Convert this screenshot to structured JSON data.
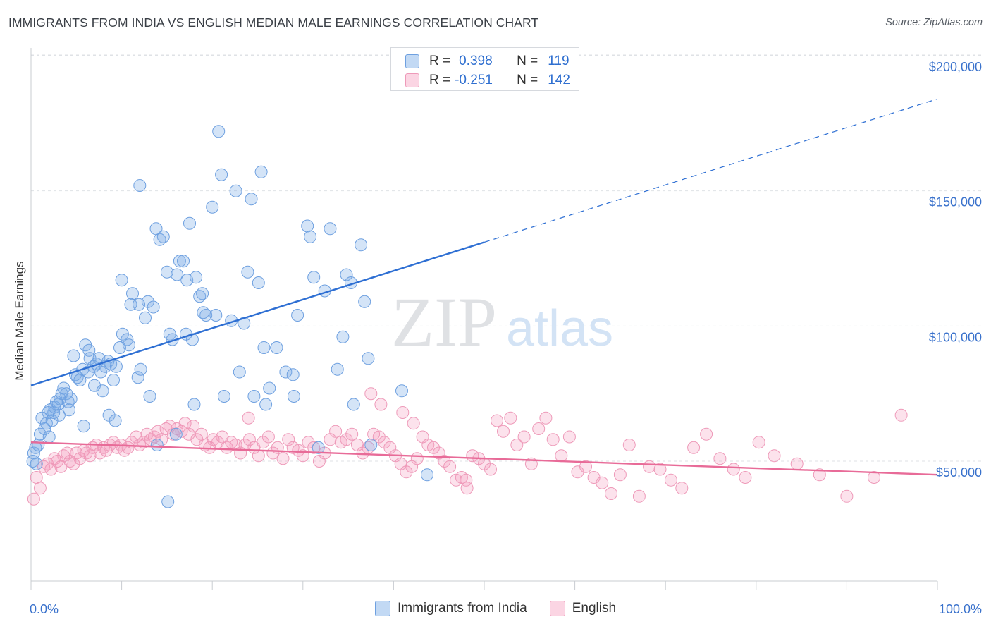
{
  "header": {
    "title": "IMMIGRANTS FROM INDIA VS ENGLISH MEDIAN MALE EARNINGS CORRELATION CHART",
    "source": "Source: ZipAtlas.com"
  },
  "watermark": {
    "zip": "ZIP",
    "atlas": "atlas"
  },
  "stats_legend": {
    "rows": [
      {
        "r_label": "R =",
        "r_value": "0.398",
        "n_label": "N =",
        "n_value": "119"
      },
      {
        "r_label": "R =",
        "r_value": "-0.251",
        "n_label": "N =",
        "n_value": "142"
      }
    ]
  },
  "bottom_legend": {
    "series_1": "Immigrants from India",
    "series_2": "English"
  },
  "colors": {
    "india_fill": "rgba(120,170,230,0.32)",
    "india_stroke": "#6ea0e0",
    "india_line": "#2e6fd3",
    "english_fill": "rgba(245,150,185,0.28)",
    "english_stroke": "#ee9ab9",
    "english_line": "#e86b98",
    "axis_label_blue": "#3a72cc",
    "grid": "#dfe2e6"
  },
  "chart_data": {
    "type": "scatter",
    "title": "IMMIGRANTS FROM INDIA VS ENGLISH MEDIAN MALE EARNINGS CORRELATION CHART",
    "xlabel": "",
    "ylabel": "Median Male Earnings",
    "x_tick_labels": [
      "0.0%",
      "100.0%"
    ],
    "y_tick_labels": [
      "$50,000",
      "$100,000",
      "$150,000",
      "$200,000"
    ],
    "xlim": [
      0,
      100
    ],
    "ylim": [
      15000,
      220000
    ],
    "y_ticks": [
      50000,
      100000,
      150000,
      200000
    ],
    "grid": true,
    "legend_position": "top-center",
    "series": [
      {
        "name": "Immigrants from India",
        "R": 0.398,
        "N": 119,
        "trend": {
          "x0": 0,
          "y0": 78000,
          "x1": 50,
          "y1": 131000,
          "dashed_to_x": 100,
          "dashed_to_y": 184000
        },
        "points": [
          [
            0.2,
            50000
          ],
          [
            0.3,
            53000
          ],
          [
            0.5,
            55000
          ],
          [
            0.6,
            49000
          ],
          [
            0.8,
            56000
          ],
          [
            1.2,
            66000
          ],
          [
            1.5,
            62000
          ],
          [
            1.7,
            64000
          ],
          [
            1.9,
            68000
          ],
          [
            2.1,
            69000
          ],
          [
            2.3,
            65000
          ],
          [
            2.5,
            68000
          ],
          [
            2.6,
            70000
          ],
          [
            2.8,
            72000
          ],
          [
            3.0,
            71000
          ],
          [
            3.2,
            73000
          ],
          [
            3.4,
            75000
          ],
          [
            3.6,
            77000
          ],
          [
            3.9,
            75000
          ],
          [
            4.1,
            72000
          ],
          [
            4.4,
            73000
          ],
          [
            4.7,
            89000
          ],
          [
            4.9,
            82000
          ],
          [
            5.1,
            81000
          ],
          [
            5.4,
            80000
          ],
          [
            5.7,
            84000
          ],
          [
            6.0,
            93000
          ],
          [
            6.3,
            83000
          ],
          [
            6.5,
            88000
          ],
          [
            6.9,
            85000
          ],
          [
            7.2,
            86000
          ],
          [
            7.5,
            88000
          ],
          [
            7.7,
            83000
          ],
          [
            7.9,
            76000
          ],
          [
            8.2,
            85000
          ],
          [
            8.5,
            87000
          ],
          [
            8.8,
            86000
          ],
          [
            9.1,
            80000
          ],
          [
            9.4,
            85000
          ],
          [
            9.8,
            92000
          ],
          [
            10.1,
            97000
          ],
          [
            10.6,
            95000
          ],
          [
            11.2,
            112000
          ],
          [
            11.0,
            108000
          ],
          [
            11.8,
            81000
          ],
          [
            12.1,
            84000
          ],
          [
            12.6,
            103000
          ],
          [
            12.9,
            109000
          ],
          [
            13.5,
            107000
          ],
          [
            13.8,
            136000
          ],
          [
            14.2,
            132000
          ],
          [
            14.6,
            133000
          ],
          [
            15.0,
            120000
          ],
          [
            15.3,
            97000
          ],
          [
            15.6,
            95000
          ],
          [
            16.1,
            119000
          ],
          [
            16.4,
            124000
          ],
          [
            16.8,
            124000
          ],
          [
            17.2,
            117000
          ],
          [
            17.5,
            138000
          ],
          [
            17.8,
            95000
          ],
          [
            18.2,
            118000
          ],
          [
            18.6,
            111000
          ],
          [
            18.9,
            112000
          ],
          [
            19.3,
            104000
          ],
          [
            20.0,
            144000
          ],
          [
            20.4,
            104000
          ],
          [
            20.7,
            172000
          ],
          [
            21.3,
            74000
          ],
          [
            22.1,
            102000
          ],
          [
            22.6,
            150000
          ],
          [
            23.0,
            83000
          ],
          [
            23.5,
            101000
          ],
          [
            24.3,
            147000
          ],
          [
            24.6,
            74000
          ],
          [
            25.1,
            116000
          ],
          [
            25.4,
            157000
          ],
          [
            25.7,
            92000
          ],
          [
            25.9,
            71000
          ],
          [
            27.1,
            92000
          ],
          [
            28.1,
            83000
          ],
          [
            28.9,
            82000
          ],
          [
            29.4,
            104000
          ],
          [
            30.5,
            137000
          ],
          [
            30.8,
            133000
          ],
          [
            31.2,
            118000
          ],
          [
            31.7,
            55000
          ],
          [
            32.4,
            113000
          ],
          [
            33.0,
            136000
          ],
          [
            33.8,
            84000
          ],
          [
            34.4,
            96000
          ],
          [
            34.8,
            119000
          ],
          [
            35.3,
            116000
          ],
          [
            35.6,
            71000
          ],
          [
            36.4,
            130000
          ],
          [
            36.8,
            109000
          ],
          [
            37.2,
            88000
          ],
          [
            37.5,
            56000
          ],
          [
            40.9,
            76000
          ],
          [
            43.7,
            45000
          ],
          [
            13.9,
            56000
          ],
          [
            8.6,
            67000
          ],
          [
            9.3,
            65000
          ],
          [
            15.1,
            35000
          ],
          [
            16.0,
            60000
          ],
          [
            10.0,
            117000
          ],
          [
            10.8,
            93000
          ],
          [
            11.9,
            108000
          ],
          [
            13.1,
            74000
          ],
          [
            17.1,
            97000
          ],
          [
            19.0,
            105000
          ],
          [
            21.0,
            156000
          ],
          [
            23.9,
            120000
          ],
          [
            12.0,
            152000
          ],
          [
            7.0,
            78000
          ],
          [
            5.8,
            63000
          ],
          [
            6.4,
            91000
          ],
          [
            4.2,
            69000
          ],
          [
            3.1,
            67000
          ],
          [
            1.0,
            60000
          ],
          [
            2.0,
            59000
          ],
          [
            18.0,
            71000
          ],
          [
            26.3,
            77000
          ],
          [
            29.0,
            74000
          ]
        ]
      },
      {
        "name": "English",
        "R": -0.251,
        "N": 142,
        "trend": {
          "x0": 0,
          "y0": 57000,
          "x1": 100,
          "y1": 45000
        },
        "points": [
          [
            0.3,
            36000
          ],
          [
            0.6,
            44000
          ],
          [
            1.0,
            40000
          ],
          [
            1.4,
            48000
          ],
          [
            1.8,
            49000
          ],
          [
            2.2,
            47000
          ],
          [
            2.6,
            51000
          ],
          [
            2.9,
            50000
          ],
          [
            3.3,
            48000
          ],
          [
            3.6,
            52000
          ],
          [
            4.0,
            53000
          ],
          [
            4.3,
            50000
          ],
          [
            4.7,
            49000
          ],
          [
            5.0,
            53000
          ],
          [
            5.4,
            51000
          ],
          [
            5.8,
            54000
          ],
          [
            6.1,
            53000
          ],
          [
            6.5,
            52000
          ],
          [
            6.8,
            55000
          ],
          [
            7.2,
            56000
          ],
          [
            7.6,
            53000
          ],
          [
            8.0,
            55000
          ],
          [
            8.3,
            54000
          ],
          [
            8.7,
            56000
          ],
          [
            9.1,
            57000
          ],
          [
            9.5,
            55000
          ],
          [
            9.9,
            56000
          ],
          [
            10.3,
            54000
          ],
          [
            10.7,
            55000
          ],
          [
            11.1,
            57000
          ],
          [
            11.6,
            59000
          ],
          [
            12.0,
            56000
          ],
          [
            12.4,
            57000
          ],
          [
            12.8,
            60000
          ],
          [
            13.2,
            58000
          ],
          [
            13.6,
            59000
          ],
          [
            14.0,
            61000
          ],
          [
            14.4,
            58000
          ],
          [
            14.9,
            62000
          ],
          [
            15.3,
            63000
          ],
          [
            15.7,
            60000
          ],
          [
            16.1,
            62000
          ],
          [
            16.6,
            61000
          ],
          [
            17.0,
            64000
          ],
          [
            17.4,
            60000
          ],
          [
            17.9,
            63000
          ],
          [
            18.3,
            58000
          ],
          [
            18.8,
            60000
          ],
          [
            19.2,
            56000
          ],
          [
            19.7,
            55000
          ],
          [
            20.1,
            58000
          ],
          [
            20.6,
            57000
          ],
          [
            21.1,
            59000
          ],
          [
            21.6,
            55000
          ],
          [
            22.1,
            57000
          ],
          [
            22.6,
            56000
          ],
          [
            23.1,
            53000
          ],
          [
            23.6,
            56000
          ],
          [
            24.1,
            58000
          ],
          [
            24.6,
            55000
          ],
          [
            25.1,
            52000
          ],
          [
            25.6,
            57000
          ],
          [
            26.2,
            59000
          ],
          [
            26.7,
            53000
          ],
          [
            27.2,
            55000
          ],
          [
            27.8,
            51000
          ],
          [
            28.4,
            58000
          ],
          [
            28.9,
            55000
          ],
          [
            29.5,
            54000
          ],
          [
            30.0,
            52000
          ],
          [
            30.6,
            57000
          ],
          [
            31.2,
            55000
          ],
          [
            31.8,
            50000
          ],
          [
            32.4,
            53000
          ],
          [
            33.0,
            58000
          ],
          [
            33.6,
            61000
          ],
          [
            34.2,
            57000
          ],
          [
            34.8,
            58000
          ],
          [
            35.4,
            60000
          ],
          [
            36.0,
            56000
          ],
          [
            36.6,
            53000
          ],
          [
            37.2,
            55000
          ],
          [
            37.8,
            60000
          ],
          [
            38.4,
            59000
          ],
          [
            39.0,
            57000
          ],
          [
            39.6,
            55000
          ],
          [
            40.2,
            52000
          ],
          [
            40.8,
            49000
          ],
          [
            41.4,
            46000
          ],
          [
            42.0,
            48000
          ],
          [
            42.6,
            51000
          ],
          [
            43.2,
            59000
          ],
          [
            43.8,
            56000
          ],
          [
            44.4,
            55000
          ],
          [
            45.0,
            53000
          ],
          [
            45.6,
            50000
          ],
          [
            46.2,
            48000
          ],
          [
            46.9,
            43000
          ],
          [
            47.5,
            44000
          ],
          [
            48.1,
            40000
          ],
          [
            48.7,
            52000
          ],
          [
            49.4,
            51000
          ],
          [
            50.0,
            49000
          ],
          [
            50.7,
            47000
          ],
          [
            51.4,
            65000
          ],
          [
            52.1,
            61000
          ],
          [
            52.9,
            66000
          ],
          [
            53.6,
            56000
          ],
          [
            54.4,
            59000
          ],
          [
            55.2,
            49000
          ],
          [
            56.0,
            62000
          ],
          [
            56.8,
            66000
          ],
          [
            57.6,
            58000
          ],
          [
            58.5,
            52000
          ],
          [
            59.4,
            59000
          ],
          [
            60.3,
            46000
          ],
          [
            61.2,
            48000
          ],
          [
            62.1,
            44000
          ],
          [
            63.0,
            42000
          ],
          [
            64.0,
            38000
          ],
          [
            65.0,
            45000
          ],
          [
            66.0,
            56000
          ],
          [
            67.1,
            37000
          ],
          [
            68.2,
            48000
          ],
          [
            69.4,
            47000
          ],
          [
            70.6,
            43000
          ],
          [
            71.8,
            40000
          ],
          [
            73.1,
            55000
          ],
          [
            74.5,
            60000
          ],
          [
            76.0,
            51000
          ],
          [
            77.5,
            47000
          ],
          [
            78.8,
            44000
          ],
          [
            80.3,
            57000
          ],
          [
            82.0,
            52000
          ],
          [
            84.5,
            49000
          ],
          [
            87.0,
            45000
          ],
          [
            90.0,
            37000
          ],
          [
            93.0,
            44000
          ],
          [
            96.0,
            67000
          ],
          [
            24.0,
            66000
          ],
          [
            37.5,
            75000
          ],
          [
            38.6,
            71000
          ],
          [
            41.0,
            68000
          ],
          [
            42.2,
            64000
          ],
          [
            48.0,
            43000
          ]
        ]
      }
    ]
  }
}
